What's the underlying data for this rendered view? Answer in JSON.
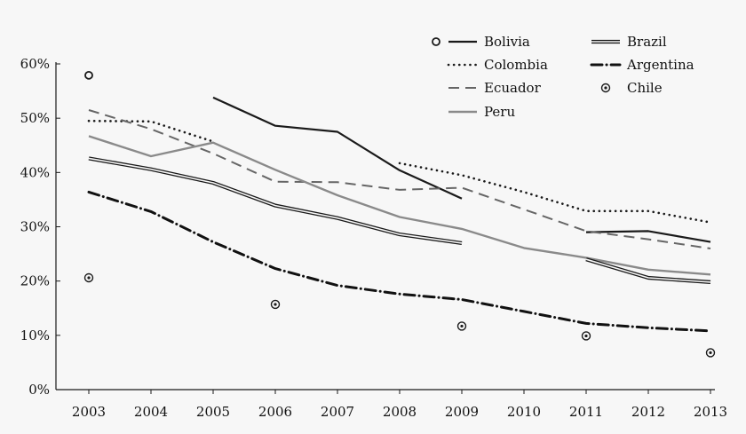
{
  "chart_data": {
    "type": "line",
    "title": "",
    "xlabel": "",
    "ylabel": "",
    "x": [
      2003,
      2004,
      2005,
      2006,
      2007,
      2008,
      2009,
      2010,
      2011,
      2012,
      2013
    ],
    "x_tick_labels": [
      "2003",
      "2004",
      "2005",
      "2006",
      "2007",
      "2008",
      "2009",
      "2010",
      "2011",
      "2012",
      "2013"
    ],
    "y_ticks": [
      0,
      10,
      20,
      30,
      40,
      50,
      60
    ],
    "y_tick_labels": [
      "0%",
      "10%",
      "20%",
      "30%",
      "40%",
      "50%",
      "60%"
    ],
    "ylim": [
      0,
      60
    ],
    "grid": false,
    "legend_position": "top-right",
    "series": [
      {
        "name": "Bolivia",
        "style": "solid-thick",
        "color": "#1a1a1a",
        "values": [
          57.9,
          null,
          53.8,
          48.6,
          47.5,
          40.4,
          35.2,
          null,
          29.0,
          29.2,
          27.2
        ]
      },
      {
        "name": "Colombia",
        "style": "dotted",
        "color": "#1a1a1a",
        "values": [
          49.5,
          49.4,
          45.7,
          null,
          null,
          41.7,
          39.5,
          36.4,
          32.9,
          32.9,
          30.8
        ]
      },
      {
        "name": "Ecuador",
        "style": "dashed",
        "color": "#666666",
        "values": [
          51.5,
          48.0,
          43.5,
          38.3,
          38.2,
          36.8,
          37.2,
          33.2,
          29.2,
          27.7,
          26.0
        ]
      },
      {
        "name": "Peru",
        "style": "solid-gray",
        "color": "#8a8a8a",
        "values": [
          46.7,
          43.0,
          45.5,
          40.5,
          35.8,
          31.8,
          29.6,
          26.1,
          24.3,
          22.1,
          21.2
        ]
      },
      {
        "name": "Brazil",
        "style": "double",
        "color": "#1a1a1a",
        "values": [
          42.6,
          40.6,
          38.1,
          33.9,
          31.6,
          28.6,
          27.0,
          null,
          24.0,
          20.6,
          19.8
        ]
      },
      {
        "name": "Argentina",
        "style": "dash-dot",
        "color": "#111111",
        "values": [
          36.4,
          32.8,
          27.2,
          22.3,
          19.2,
          17.6,
          16.6,
          14.4,
          12.2,
          11.4,
          10.8
        ]
      },
      {
        "name": "Chile",
        "style": "point",
        "color": "#1a1a1a",
        "values": [
          20.6,
          null,
          null,
          15.7,
          null,
          null,
          11.7,
          null,
          9.9,
          null,
          6.8
        ]
      }
    ]
  }
}
